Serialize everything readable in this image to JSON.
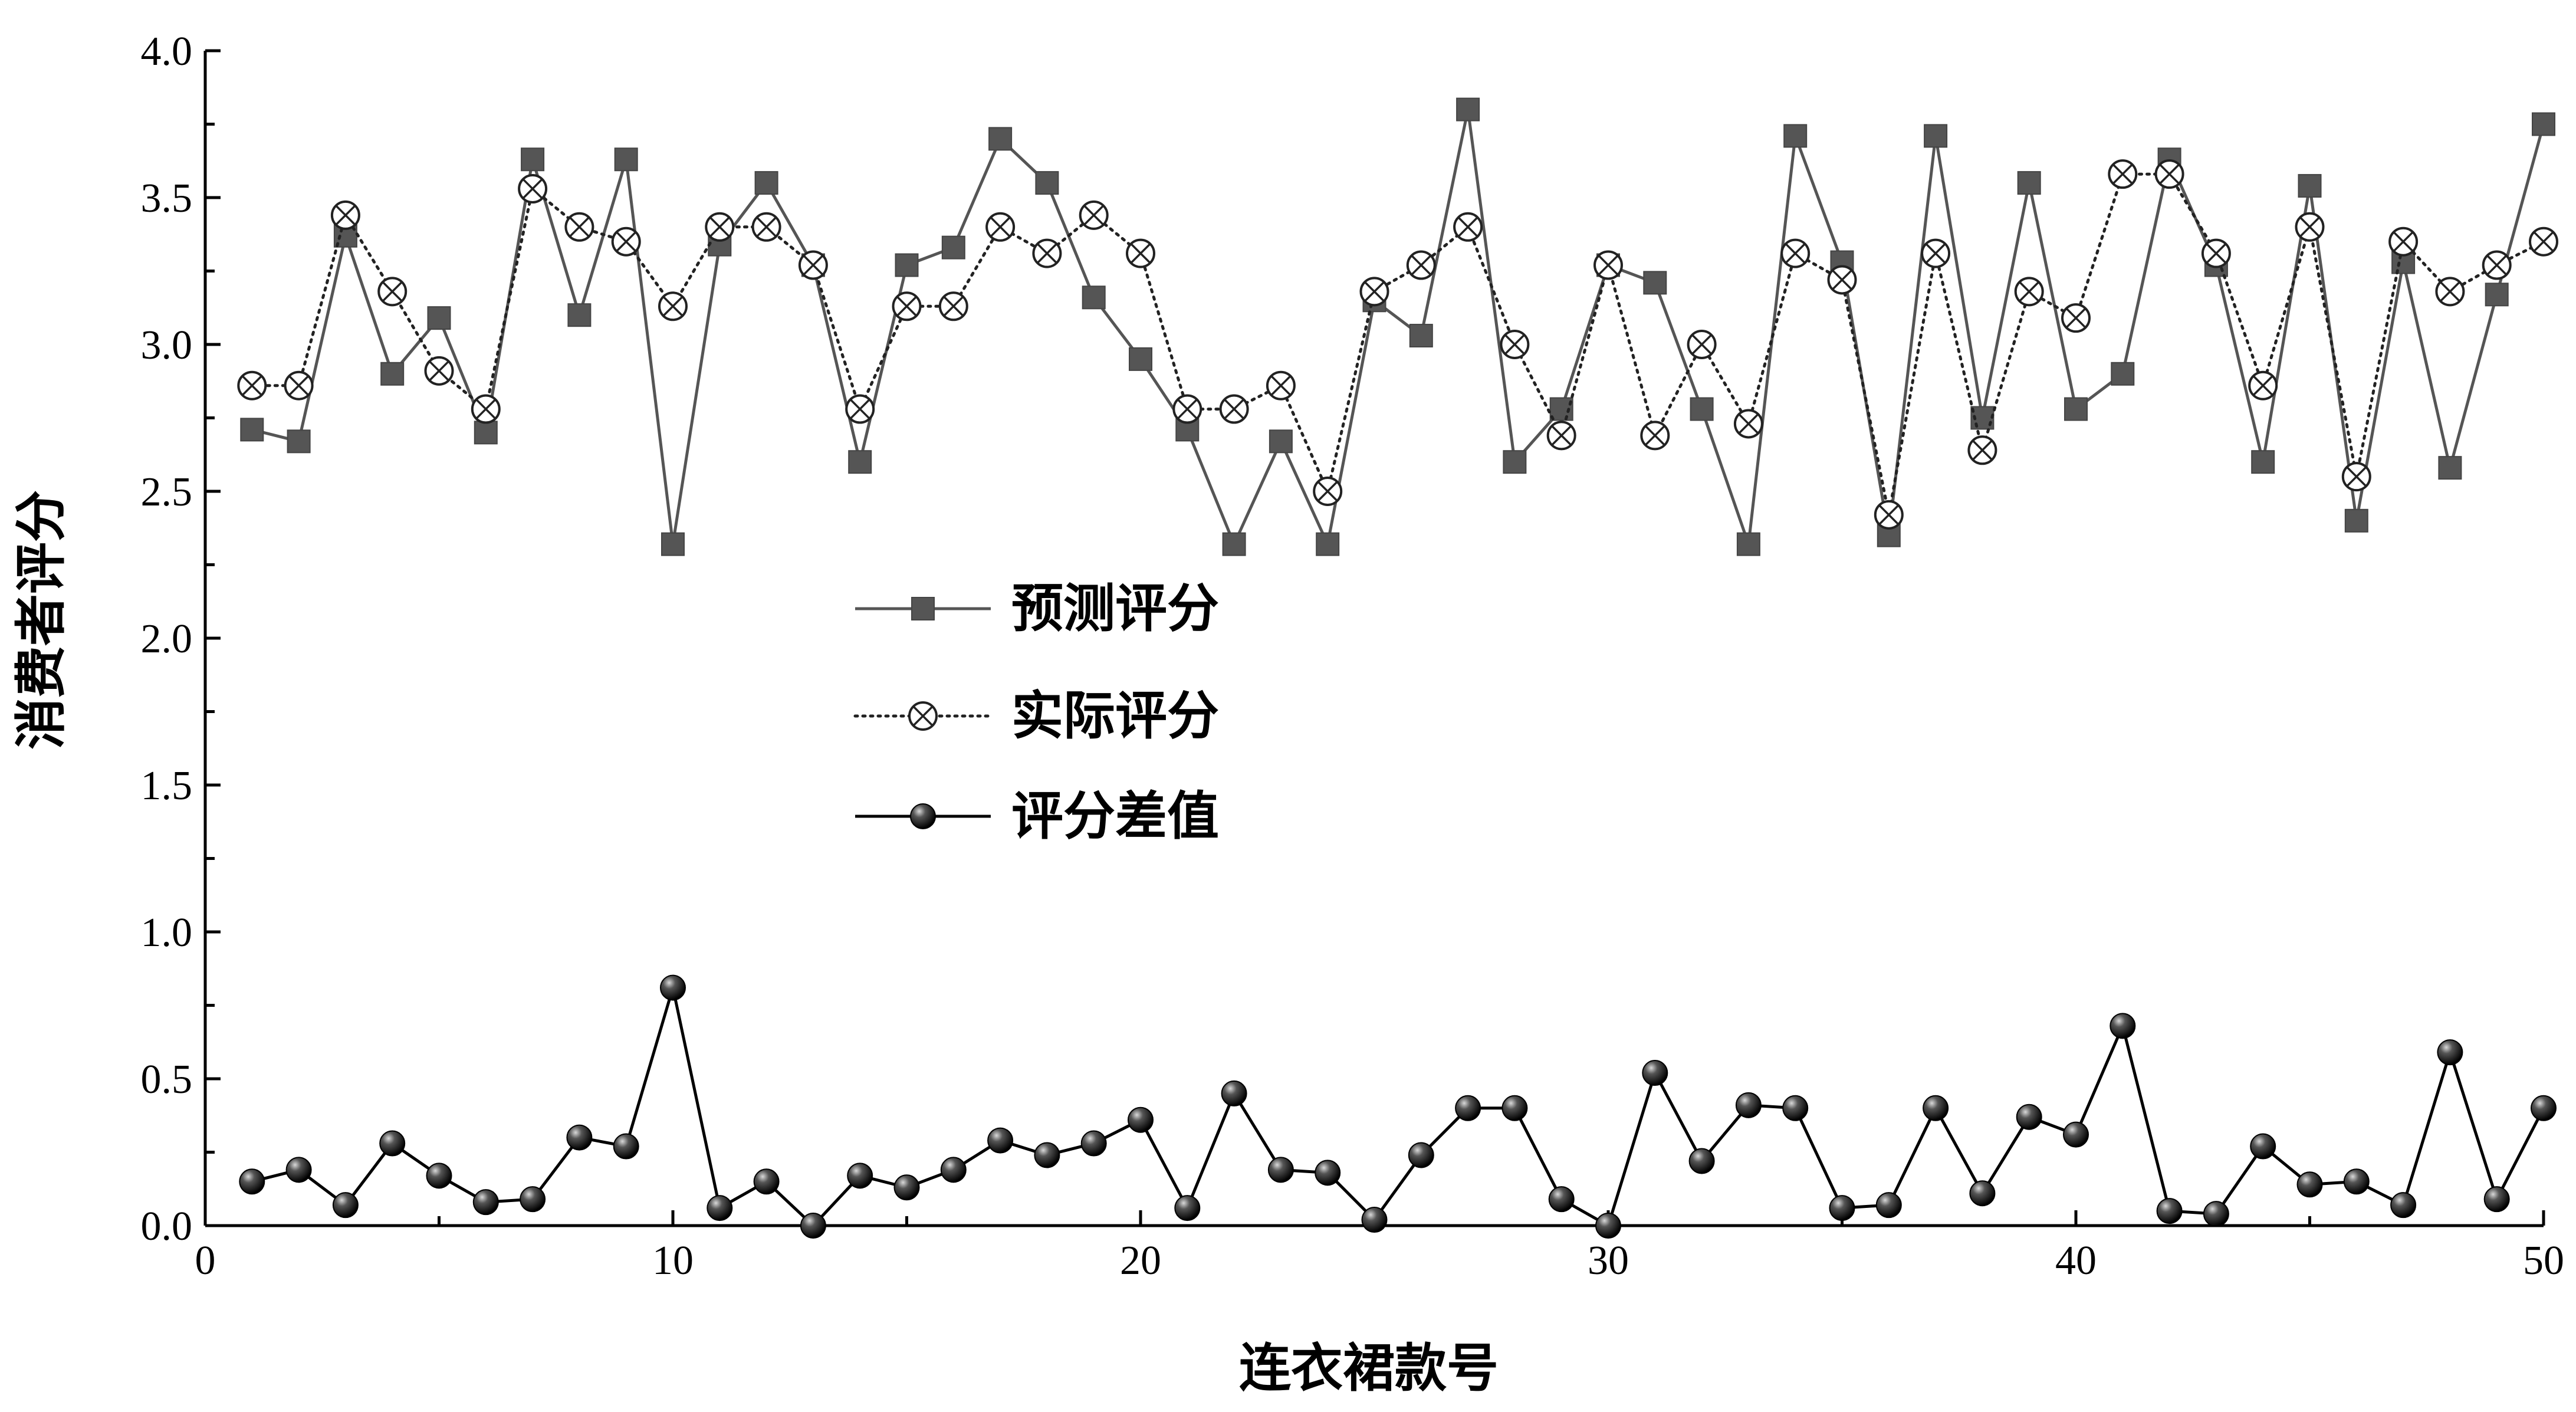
{
  "chart_data": {
    "type": "line",
    "title": "",
    "xlabel": "连衣裙款号",
    "ylabel": "消费者评分",
    "xlim": [
      0,
      50
    ],
    "ylim": [
      0,
      4
    ],
    "x_ticks": [
      "0",
      "10",
      "20",
      "30",
      "40",
      "50"
    ],
    "y_ticks": [
      "0.0",
      "0.5",
      "1.0",
      "1.5",
      "2.0",
      "2.5",
      "3.0",
      "3.5",
      "4.0"
    ],
    "grid": false,
    "legend_position": "center-left",
    "x": [
      1,
      2,
      3,
      4,
      5,
      6,
      7,
      8,
      9,
      10,
      11,
      12,
      13,
      14,
      15,
      16,
      17,
      18,
      19,
      20,
      21,
      22,
      23,
      24,
      25,
      26,
      27,
      28,
      29,
      30,
      31,
      32,
      33,
      34,
      35,
      36,
      37,
      38,
      39,
      40,
      41,
      42,
      43,
      44,
      45,
      46,
      47,
      48,
      49,
      50
    ],
    "series": [
      {
        "name": "预测评分",
        "marker": "square",
        "line_style": "solid",
        "color": "#555555",
        "values": [
          2.71,
          2.67,
          3.37,
          2.9,
          3.09,
          2.7,
          3.63,
          3.1,
          3.63,
          2.32,
          3.34,
          3.55,
          3.27,
          2.6,
          3.27,
          3.33,
          3.7,
          3.55,
          3.16,
          2.95,
          2.71,
          2.32,
          2.67,
          2.32,
          3.15,
          3.03,
          3.8,
          2.6,
          2.78,
          3.27,
          3.21,
          2.78,
          2.32,
          3.71,
          3.28,
          2.35,
          3.71,
          2.75,
          3.55,
          2.78,
          2.9,
          3.63,
          3.27,
          2.6,
          3.54,
          2.4,
          3.28,
          2.58,
          3.17,
          3.75
        ]
      },
      {
        "name": "实际评分",
        "marker": "circle-cross",
        "line_style": "dotted",
        "color": "#222222",
        "values": [
          2.86,
          2.86,
          3.44,
          3.18,
          2.91,
          2.78,
          3.53,
          3.4,
          3.35,
          3.13,
          3.4,
          3.4,
          3.27,
          2.78,
          3.13,
          3.13,
          3.4,
          3.31,
          3.44,
          3.31,
          2.78,
          2.78,
          2.86,
          2.5,
          3.18,
          3.27,
          3.4,
          3.0,
          2.69,
          3.27,
          2.69,
          3.0,
          2.73,
          3.31,
          3.22,
          2.42,
          3.31,
          2.64,
          3.18,
          3.09,
          3.58,
          3.58,
          3.31,
          2.86,
          3.4,
          2.55,
          3.35,
          3.18,
          3.27,
          3.35
        ]
      },
      {
        "name": "评分差值",
        "marker": "sphere",
        "line_style": "solid",
        "color": "#000000",
        "values": [
          0.15,
          0.19,
          0.07,
          0.28,
          0.17,
          0.08,
          0.09,
          0.3,
          0.27,
          0.81,
          0.06,
          0.15,
          0.0,
          0.17,
          0.13,
          0.19,
          0.29,
          0.24,
          0.28,
          0.36,
          0.06,
          0.45,
          0.19,
          0.18,
          0.02,
          0.24,
          0.4,
          0.4,
          0.09,
          0.0,
          0.52,
          0.22,
          0.41,
          0.4,
          0.06,
          0.07,
          0.4,
          0.11,
          0.37,
          0.31,
          0.68,
          0.05,
          0.04,
          0.27,
          0.14,
          0.15,
          0.07,
          0.59,
          0.09,
          0.4
        ]
      }
    ]
  }
}
